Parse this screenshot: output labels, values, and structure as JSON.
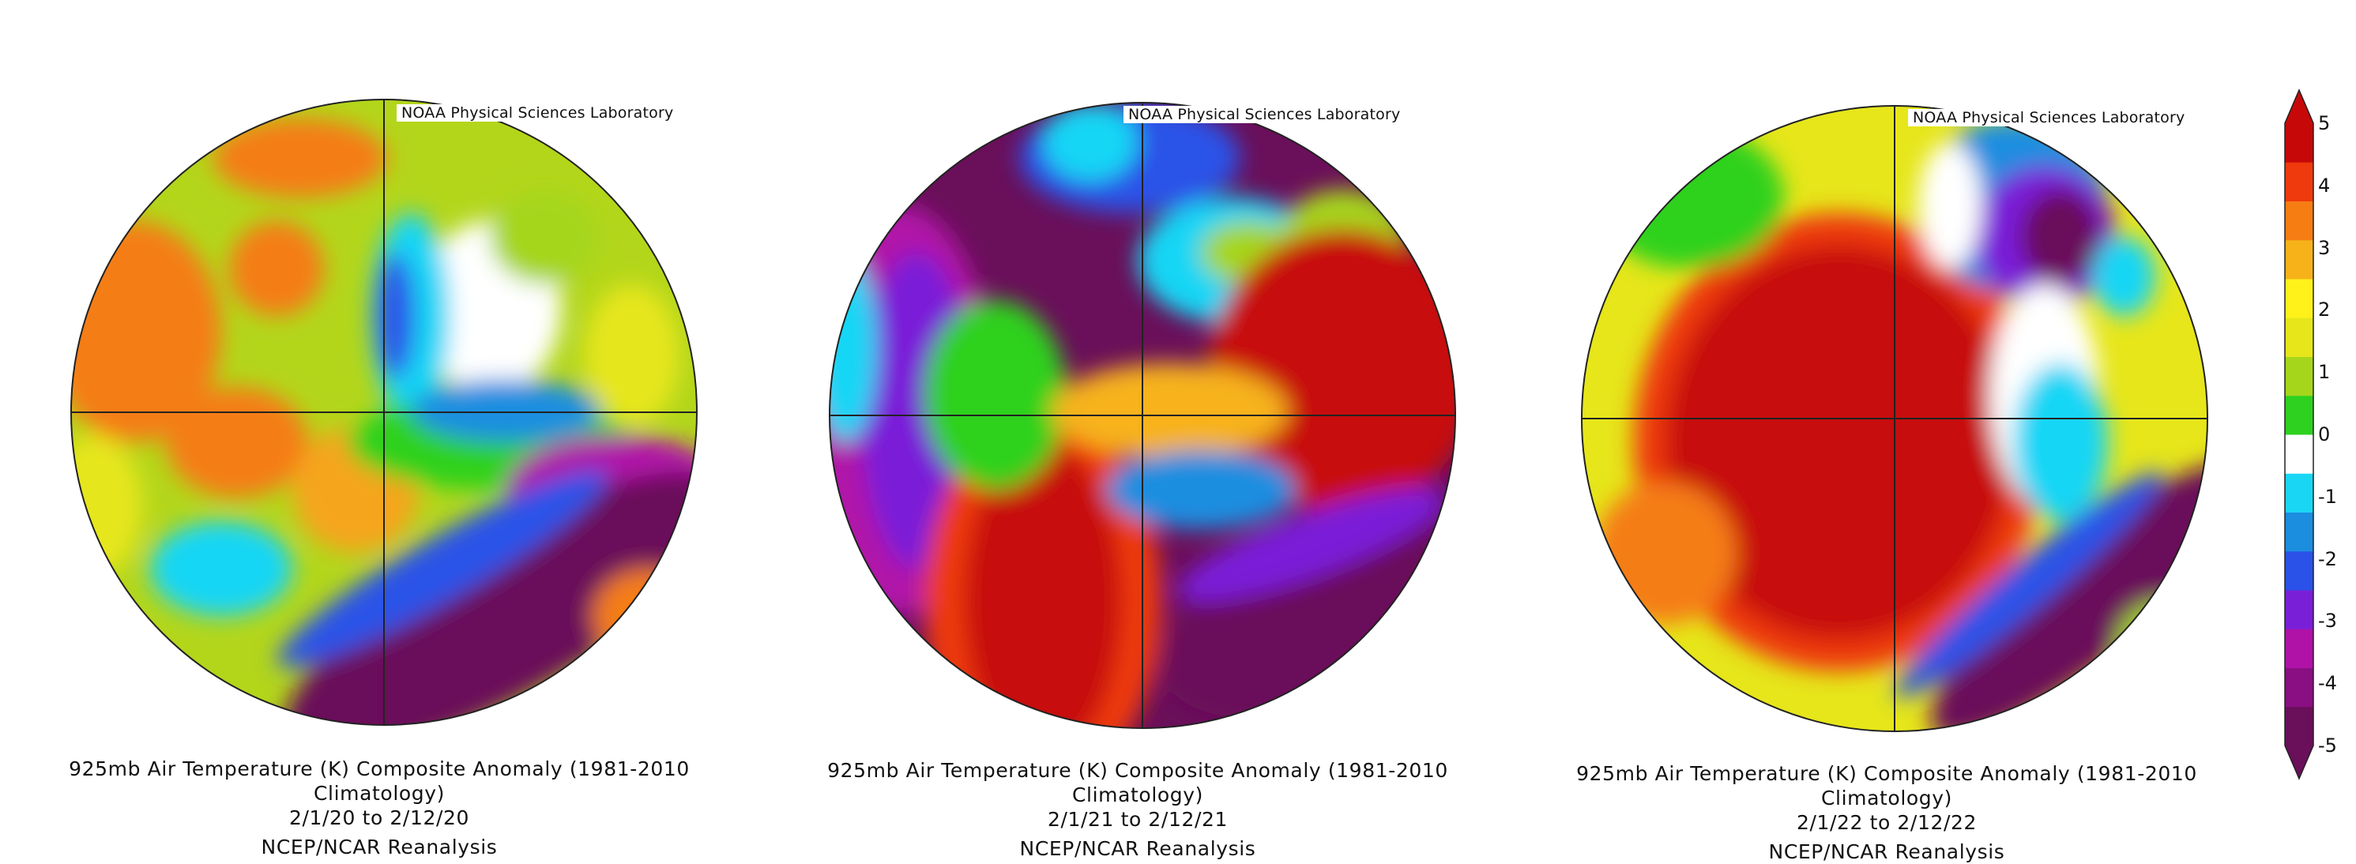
{
  "maps": [
    {
      "credit": "NOAA Physical Sciences Laboratory",
      "title": "925mb Air Temperature (K) Composite Anomaly (1981-2010 Climatology)",
      "dates": "2/1/20   to 2/12/20",
      "source": "NCEP/NCAR Reanalysis"
    },
    {
      "credit": "NOAA Physical Sciences Laboratory",
      "title": "925mb Air Temperature (K) Composite Anomaly (1981-2010 Climatology)",
      "dates": "2/1/21   to 2/12/21",
      "source": "NCEP/NCAR Reanalysis"
    },
    {
      "credit": "NOAA Physical Sciences Laboratory",
      "title": "925mb Air Temperature (K) Composite Anomaly (1981-2010 Climatology)",
      "dates": "2/1/22   to 2/12/22",
      "source": "NCEP/NCAR Reanalysis"
    }
  ],
  "colorbar": {
    "labels": [
      "5",
      "4",
      "3",
      "2",
      "1",
      "0",
      "-1",
      "-2",
      "-3",
      "-4",
      "-5"
    ],
    "colors": [
      "#6a0f5a",
      "#8a0f82",
      "#b012a8",
      "#7a1fd8",
      "#2a52e8",
      "#1b8ee0",
      "#19d6f5",
      "#ffffff",
      "#2ed11f",
      "#a6d61b",
      "#e6e61a",
      "#fff21a",
      "#f7b21a",
      "#f57d12",
      "#ee3a0c",
      "#c70808"
    ]
  }
}
